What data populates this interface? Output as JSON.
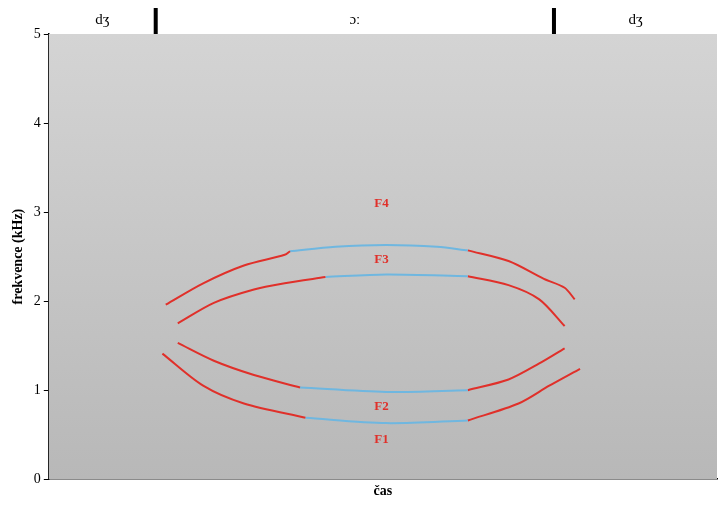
{
  "chart_data": {
    "type": "line",
    "x_label": "čas",
    "y_label": "frekvence (kHz)",
    "xlim": [
      0,
      100
    ],
    "ylim": [
      0,
      5
    ],
    "yticks": [
      0,
      1,
      2,
      3,
      4,
      5
    ],
    "tick_labels": "y",
    "grid": false,
    "segments": [
      {
        "label": "dʒ",
        "start": 0,
        "end": 16
      },
      {
        "label": "ɔː",
        "start": 16,
        "end": 75.6
      },
      {
        "label": "dʒ",
        "start": 75.6,
        "end": 100
      }
    ],
    "series": [
      {
        "color": "#e0302a",
        "x": [
          17.5,
          23.1,
          29.2,
          35.3,
          36.1
        ],
        "values": [
          1.96,
          2.2,
          2.4,
          2.52,
          2.56
        ]
      },
      {
        "color": "#6fb7e0",
        "x": [
          36.1,
          42.9,
          50.5,
          58.1,
          62.7
        ],
        "values": [
          2.56,
          2.61,
          2.63,
          2.61,
          2.57
        ]
      },
      {
        "color": "#e0302a",
        "x": [
          62.7,
          68.8,
          74.1,
          77.2,
          78.7
        ],
        "values": [
          2.57,
          2.45,
          2.25,
          2.15,
          2.02
        ]
      },
      {
        "color": "#e0302a",
        "x": [
          19.3,
          24.7,
          30.7,
          35.3,
          41.4
        ],
        "values": [
          1.75,
          1.98,
          2.13,
          2.2,
          2.27
        ]
      },
      {
        "color": "#6fb7e0",
        "x": [
          41.4,
          50.5,
          62.7
        ],
        "values": [
          2.27,
          2.3,
          2.28
        ]
      },
      {
        "color": "#e0302a",
        "x": [
          62.7,
          68.8,
          73.4,
          77.2
        ],
        "values": [
          2.28,
          2.18,
          2.02,
          1.72
        ]
      },
      {
        "color": "#e0302a",
        "x": [
          19.3,
          24.7,
          30.7,
          37.6
        ],
        "values": [
          1.53,
          1.33,
          1.17,
          1.03
        ]
      },
      {
        "color": "#6fb7e0",
        "x": [
          37.6,
          50.5,
          62.7
        ],
        "values": [
          1.03,
          0.98,
          1.0
        ]
      },
      {
        "color": "#e0302a",
        "x": [
          62.7,
          68.8,
          73.4,
          77.2
        ],
        "values": [
          1.0,
          1.12,
          1.3,
          1.47
        ]
      },
      {
        "color": "#e0302a",
        "x": [
          17.0,
          23.1,
          29.2,
          38.4
        ],
        "values": [
          1.41,
          1.05,
          0.85,
          0.69
        ]
      },
      {
        "color": "#6fb7e0",
        "x": [
          38.4,
          50.5,
          62.7
        ],
        "values": [
          0.69,
          0.63,
          0.66
        ]
      },
      {
        "color": "#e0302a",
        "x": [
          62.7,
          70.3,
          74.9,
          79.5
        ],
        "values": [
          0.66,
          0.85,
          1.05,
          1.24
        ]
      }
    ],
    "annotations": [
      {
        "text": "F4",
        "x": 49.8,
        "y": 3.1,
        "color": "#e0302a"
      },
      {
        "text": "F3",
        "x": 49.8,
        "y": 2.47,
        "color": "#e0302a"
      },
      {
        "text": "F2",
        "x": 49.8,
        "y": 0.81,
        "color": "#e0302a"
      },
      {
        "text": "F1",
        "x": 49.8,
        "y": 0.44,
        "color": "#e0302a"
      }
    ]
  }
}
